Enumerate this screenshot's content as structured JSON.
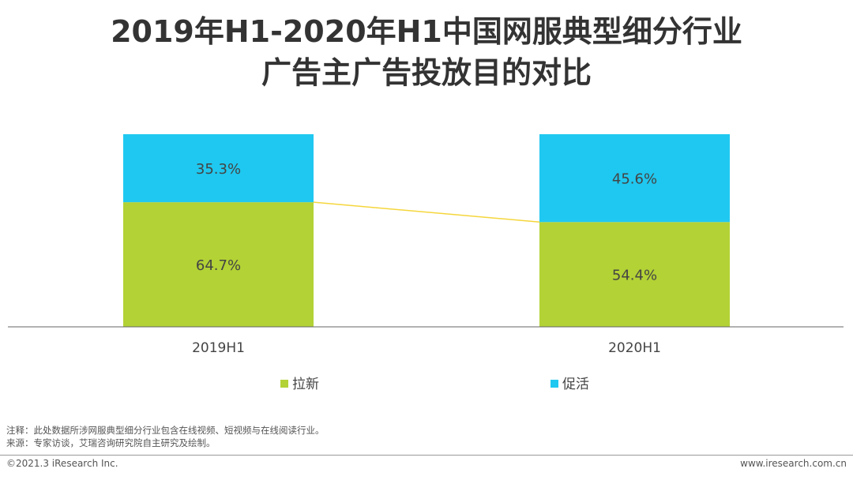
{
  "title_line1": "2019年H1-2020年H1中国网服典型细分行业",
  "title_line2": "广告主广告投放目的对比",
  "chart_data": {
    "type": "bar",
    "stacked": true,
    "percent_stacked": true,
    "categories": [
      "2019H1",
      "2020H1"
    ],
    "series": [
      {
        "name": "拉新",
        "values": [
          64.7,
          54.4
        ],
        "labels": [
          "64.7%",
          "54.4%"
        ],
        "color": "#b3d235"
      },
      {
        "name": "促活",
        "values": [
          35.3,
          45.6
        ],
        "labels": [
          "35.3%",
          "45.6%"
        ],
        "color": "#1fc8f0"
      }
    ],
    "ylim": [
      0,
      100
    ],
    "connector_color": "#f5d63c",
    "legend_position": "bottom"
  },
  "notes": {
    "note": "注释：此处数据所涉网服典型细分行业包含在线视频、短视频与在线阅读行业。",
    "source": "来源：专家访谈，艾瑞咨询研究院自主研究及绘制。"
  },
  "footer": {
    "copyright": "©2021.3 iResearch Inc.",
    "website": "www.iresearch.com.cn"
  }
}
